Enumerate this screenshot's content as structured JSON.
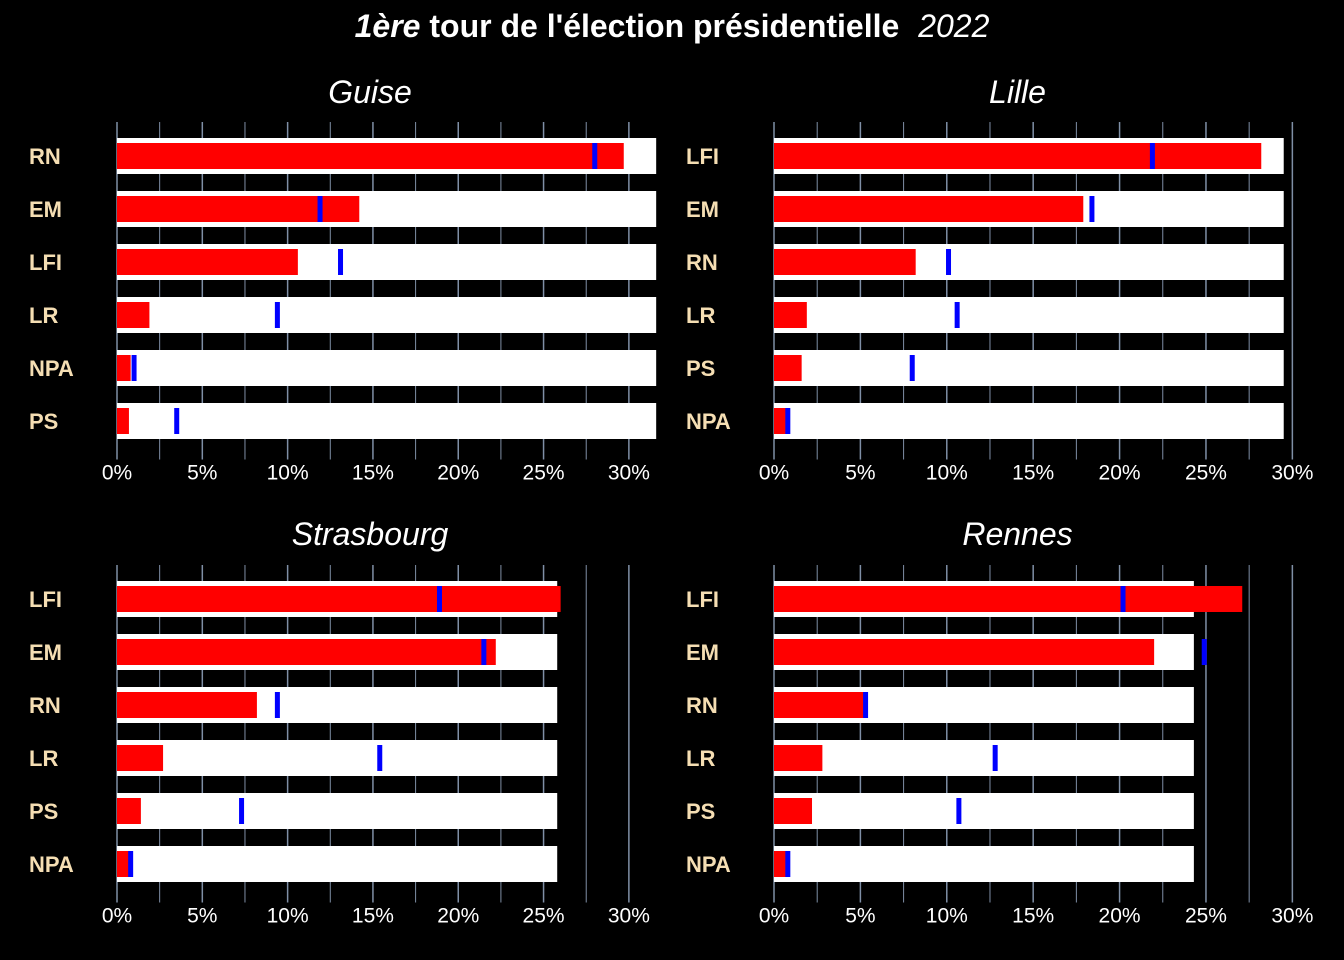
{
  "title": {
    "prefix": "1ère",
    "main": "tour de l'élection présidentielle",
    "year": "2022"
  },
  "colors": {
    "background": "#000000",
    "track": "#ffffff",
    "local_bar": "#ff0000",
    "national_marker": "#0000ff",
    "party_label": "#f5deb3",
    "tick_label": "#ffffff",
    "gridline": "#7f8fa6"
  },
  "chart_data": [
    {
      "type": "bar",
      "title": "Guise",
      "xlim": [
        0,
        32
      ],
      "ticks": [
        0,
        5,
        10,
        15,
        20,
        25,
        30
      ],
      "tick_labels": [
        "0%",
        "5%",
        "10%",
        "15%",
        "20%",
        "25%",
        "30%"
      ],
      "track_value": 31.6,
      "categories": [
        "RN",
        "EM",
        "LFI",
        "LR",
        "NPA",
        "PS"
      ],
      "series": [
        {
          "values": [
            29.7,
            14.2,
            10.6,
            1.9,
            0.8,
            0.7
          ]
        },
        {
          "values": [
            28.0,
            11.9,
            13.1,
            9.4,
            1.0,
            3.5
          ]
        }
      ]
    },
    {
      "type": "bar",
      "title": "Lille",
      "xlim": [
        0,
        30.5
      ],
      "ticks": [
        0,
        5,
        10,
        15,
        20,
        25,
        30
      ],
      "tick_labels": [
        "0%",
        "5%",
        "10%",
        "15%",
        "20%",
        "25%",
        "30%"
      ],
      "track_value": 29.5,
      "categories": [
        "LFI",
        "EM",
        "RN",
        "LR",
        "PS",
        "NPA"
      ],
      "series": [
        {
          "values": [
            28.2,
            17.9,
            8.2,
            1.9,
            1.6,
            0.7
          ]
        },
        {
          "values": [
            21.9,
            18.4,
            10.1,
            10.6,
            8.0,
            0.8
          ]
        }
      ]
    },
    {
      "type": "bar",
      "title": "Strasbourg",
      "xlim": [
        0,
        32
      ],
      "ticks": [
        0,
        5,
        10,
        15,
        20,
        25,
        30
      ],
      "tick_labels": [
        "0%",
        "5%",
        "10%",
        "15%",
        "20%",
        "25%",
        "30%"
      ],
      "track_value": 25.8,
      "categories": [
        "LFI",
        "EM",
        "RN",
        "LR",
        "PS",
        "NPA"
      ],
      "series": [
        {
          "values": [
            26.0,
            22.2,
            8.2,
            2.7,
            1.4,
            0.7
          ]
        },
        {
          "values": [
            18.9,
            21.5,
            9.4,
            15.4,
            7.3,
            0.8
          ]
        }
      ]
    },
    {
      "type": "bar",
      "title": "Rennes",
      "xlim": [
        0,
        30.5
      ],
      "ticks": [
        0,
        5,
        10,
        15,
        20,
        25,
        30
      ],
      "tick_labels": [
        "0%",
        "5%",
        "10%",
        "15%",
        "20%",
        "25%",
        "30%"
      ],
      "track_value": 24.3,
      "categories": [
        "LFI",
        "EM",
        "RN",
        "LR",
        "PS",
        "NPA"
      ],
      "series": [
        {
          "values": [
            27.1,
            22.0,
            5.2,
            2.8,
            2.2,
            0.7
          ]
        },
        {
          "values": [
            20.2,
            24.9,
            5.3,
            12.8,
            10.7,
            0.8
          ]
        }
      ]
    }
  ]
}
